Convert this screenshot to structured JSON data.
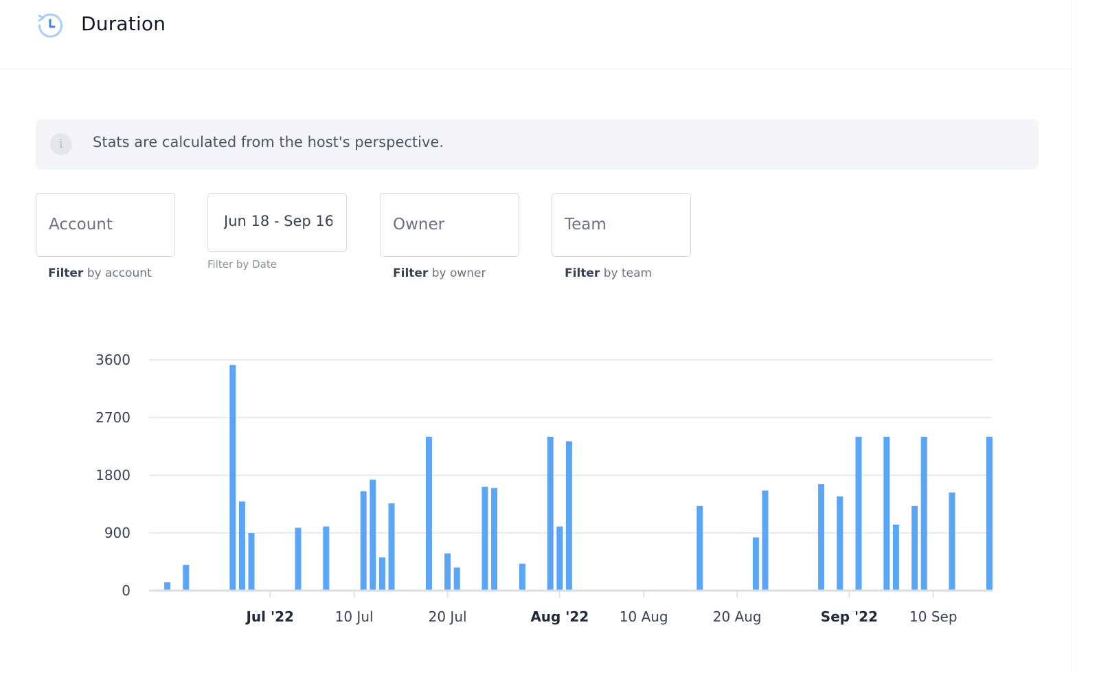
{
  "header": {
    "title": "Duration",
    "icon": "history-clock-icon"
  },
  "info_banner": {
    "icon": "info-icon",
    "icon_glyph": "i",
    "text": "Stats are calculated from the host's perspective."
  },
  "filters": {
    "account": {
      "placeholder": "Account",
      "help_bold": "Filter",
      "help_rest": " by account"
    },
    "date": {
      "value": "Jun 18  - Sep 16",
      "help": "Filter by Date"
    },
    "owner": {
      "placeholder": "Owner",
      "help_bold": "Filter",
      "help_rest": " by owner"
    },
    "team": {
      "placeholder": "Team",
      "help_bold": "Filter",
      "help_rest": " by team"
    }
  },
  "colors": {
    "bar": "#5aa5f5",
    "grid": "#e2e5e9",
    "axis": "#d9dce0"
  },
  "chart_data": {
    "type": "bar",
    "title": "",
    "xlabel": "",
    "ylabel": "",
    "ylim": [
      0,
      3600
    ],
    "y_ticks": [
      0,
      900,
      1800,
      2700,
      3600
    ],
    "x_range": [
      "2022-06-19",
      "2022-09-19"
    ],
    "x_ticks": [
      {
        "date": "2022-07-01",
        "label": "Jul '22",
        "bold": true
      },
      {
        "date": "2022-07-10",
        "label": "10 Jul",
        "bold": false
      },
      {
        "date": "2022-07-20",
        "label": "20 Jul",
        "bold": false
      },
      {
        "date": "2022-08-01",
        "label": "Aug '22",
        "bold": true
      },
      {
        "date": "2022-08-10",
        "label": "10 Aug",
        "bold": false
      },
      {
        "date": "2022-08-20",
        "label": "20 Aug",
        "bold": false
      },
      {
        "date": "2022-09-01",
        "label": "Sep '22",
        "bold": true
      },
      {
        "date": "2022-09-10",
        "label": "10 Sep",
        "bold": false
      }
    ],
    "grid": true,
    "legend": "none",
    "series": [
      {
        "points": [
          {
            "x": "2022-06-20",
            "y": 130
          },
          {
            "x": "2022-06-22",
            "y": 400
          },
          {
            "x": "2022-06-27",
            "y": 3520
          },
          {
            "x": "2022-06-28",
            "y": 1390
          },
          {
            "x": "2022-06-29",
            "y": 900
          },
          {
            "x": "2022-07-04",
            "y": 980
          },
          {
            "x": "2022-07-07",
            "y": 1000
          },
          {
            "x": "2022-07-11",
            "y": 1550
          },
          {
            "x": "2022-07-12",
            "y": 1730
          },
          {
            "x": "2022-07-13",
            "y": 520
          },
          {
            "x": "2022-07-14",
            "y": 1360
          },
          {
            "x": "2022-07-18",
            "y": 2400
          },
          {
            "x": "2022-07-20",
            "y": 580
          },
          {
            "x": "2022-07-21",
            "y": 360
          },
          {
            "x": "2022-07-24",
            "y": 1620
          },
          {
            "x": "2022-07-25",
            "y": 1600
          },
          {
            "x": "2022-07-28",
            "y": 420
          },
          {
            "x": "2022-07-31",
            "y": 2400
          },
          {
            "x": "2022-08-01",
            "y": 1000
          },
          {
            "x": "2022-08-02",
            "y": 2330
          },
          {
            "x": "2022-08-16",
            "y": 1320
          },
          {
            "x": "2022-08-22",
            "y": 830
          },
          {
            "x": "2022-08-23",
            "y": 1560
          },
          {
            "x": "2022-08-29",
            "y": 1660
          },
          {
            "x": "2022-08-31",
            "y": 1470
          },
          {
            "x": "2022-09-02",
            "y": 2400
          },
          {
            "x": "2022-09-05",
            "y": 2400
          },
          {
            "x": "2022-09-06",
            "y": 1030
          },
          {
            "x": "2022-09-08",
            "y": 1320
          },
          {
            "x": "2022-09-09",
            "y": 2400
          },
          {
            "x": "2022-09-12",
            "y": 1530
          },
          {
            "x": "2022-09-16",
            "y": 2400
          }
        ]
      }
    ]
  }
}
